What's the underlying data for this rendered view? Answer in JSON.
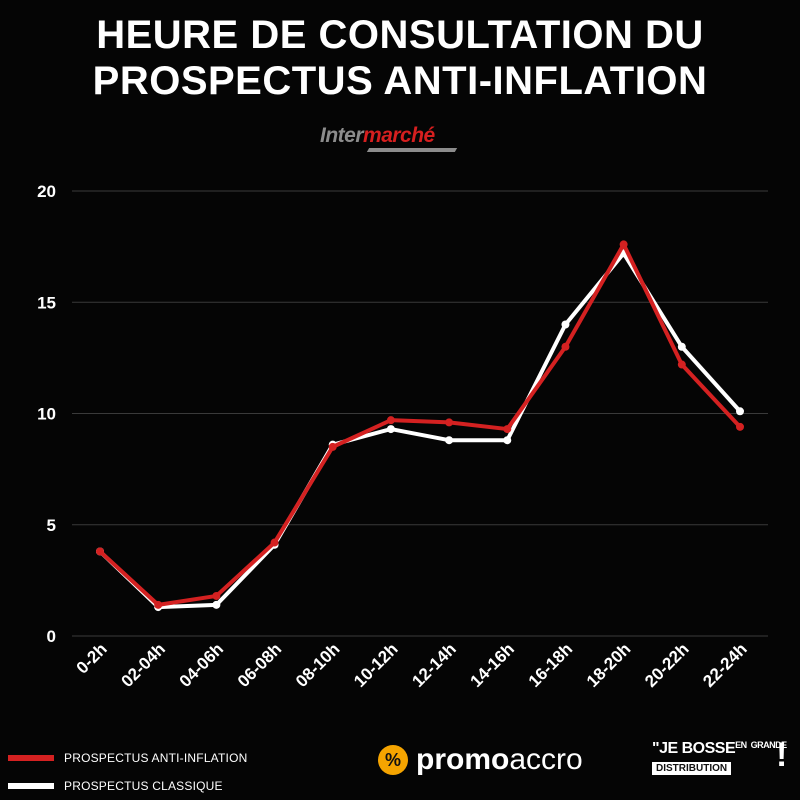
{
  "title": {
    "line1": "HEURE DE CONSULTATION DU",
    "line2": "PROSPECTUS ANTI-INFLATION"
  },
  "logos": {
    "top_brand_part1": "Inter",
    "top_brand_part2": "marché",
    "promo_part1": "promo",
    "promo_part2": "accro",
    "promo_icon": "%",
    "jebosse_part1": "\"JE BOSSE",
    "jebosse_small1": "EN",
    "jebosse_small2": "GRANDE",
    "jebosse_part2": "DISTRIBUTION",
    "jebosse_excl": "!"
  },
  "chart_data": {
    "type": "line",
    "categories": [
      "0-2h",
      "02-04h",
      "04-06h",
      "06-08h",
      "08-10h",
      "10-12h",
      "12-14h",
      "14-16h",
      "16-18h",
      "18-20h",
      "20-22h",
      "22-24h"
    ],
    "series": [
      {
        "name": "PROSPECTUS ANTI-INFLATION",
        "color": "#d42121",
        "values": [
          3.8,
          1.4,
          1.8,
          4.2,
          8.5,
          9.7,
          9.6,
          9.3,
          13.0,
          17.6,
          12.2,
          9.4
        ]
      },
      {
        "name": "PROSPECTUS CLASSIQUE",
        "color": "#ffffff",
        "values": [
          3.8,
          1.3,
          1.4,
          4.1,
          8.6,
          9.3,
          8.8,
          8.8,
          14.0,
          17.2,
          13.0,
          10.1
        ]
      }
    ],
    "yticks": [
      0,
      5,
      10,
      15,
      20
    ],
    "ylim": [
      0,
      20
    ],
    "grid": true,
    "legend_position": "bottom-left"
  }
}
